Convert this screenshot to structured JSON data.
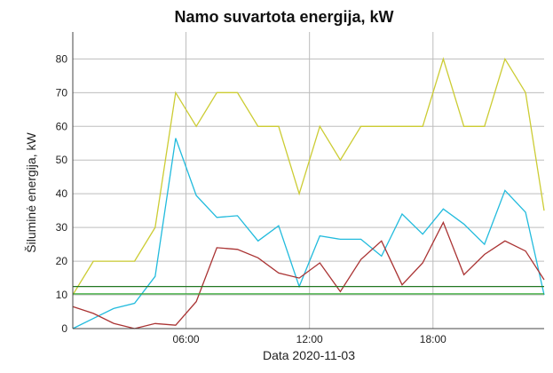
{
  "chart_data": {
    "type": "line",
    "title": "Namo suvartota energija, kW",
    "xlabel": "Data 2020-11-03",
    "ylabel": "Šiluminė energija, kW",
    "xlim": [
      0.5,
      23.4
    ],
    "ylim": [
      0,
      88
    ],
    "yticks": [
      0,
      10,
      20,
      30,
      40,
      50,
      60,
      70,
      80
    ],
    "xticks": [
      {
        "hour": 6,
        "label": "06:00"
      },
      {
        "hour": 12,
        "label": "12:00"
      },
      {
        "hour": 18,
        "label": "18:00"
      }
    ],
    "grid": true,
    "legend": "none",
    "series": [
      {
        "color": "#cccc33",
        "x": [
          0.5,
          1.5,
          2.5,
          3.5,
          4.5,
          5.5,
          6.5,
          7.5,
          8.5,
          9.5,
          10.5,
          11.5,
          12.5,
          13.5,
          14.5,
          15.5,
          16.5,
          17.5,
          18.5,
          19.5,
          20.5,
          21.5,
          22.5,
          23.4
        ],
        "values": [
          10,
          20,
          20,
          20,
          30,
          70,
          60,
          70,
          70,
          60,
          60,
          40,
          60,
          50,
          60,
          60,
          60,
          60,
          80,
          60,
          60,
          80,
          70,
          35
        ]
      },
      {
        "color": "#22bbdd",
        "x": [
          0.5,
          1.5,
          2.5,
          3.5,
          4.5,
          5.5,
          6.5,
          7.5,
          8.5,
          9.5,
          10.5,
          11.5,
          12.5,
          13.5,
          14.5,
          15.5,
          16.5,
          17.5,
          18.5,
          19.5,
          20.5,
          21.5,
          22.5,
          23.4
        ],
        "values": [
          0,
          3,
          6,
          7.5,
          15.5,
          56.5,
          39.5,
          33,
          33.5,
          26,
          30.5,
          12.5,
          27.5,
          26.5,
          26.5,
          21.5,
          34,
          28,
          35.5,
          31,
          25,
          41,
          34.5,
          10
        ]
      },
      {
        "color": "#aa3333",
        "x": [
          0.5,
          1.5,
          2.5,
          3.5,
          4.5,
          5.5,
          6.5,
          7.5,
          8.5,
          9.5,
          10.5,
          11.5,
          12.5,
          13.5,
          14.5,
          15.5,
          16.5,
          17.5,
          18.5,
          19.5,
          20.5,
          21.5,
          22.5,
          23.4
        ],
        "values": [
          6.5,
          4.5,
          1.5,
          0,
          1.5,
          1,
          8,
          24,
          23.5,
          21,
          16.5,
          15,
          19.5,
          11,
          20.5,
          26,
          13,
          19.5,
          31.5,
          16,
          22,
          26,
          23,
          14.5
        ]
      },
      {
        "color": "#227722",
        "x": [
          0.5,
          23.4
        ],
        "values": [
          12.5,
          12.5
        ]
      },
      {
        "color": "#33aa33",
        "x": [
          0.5,
          23.4
        ],
        "values": [
          10.3,
          10.3
        ]
      }
    ]
  }
}
